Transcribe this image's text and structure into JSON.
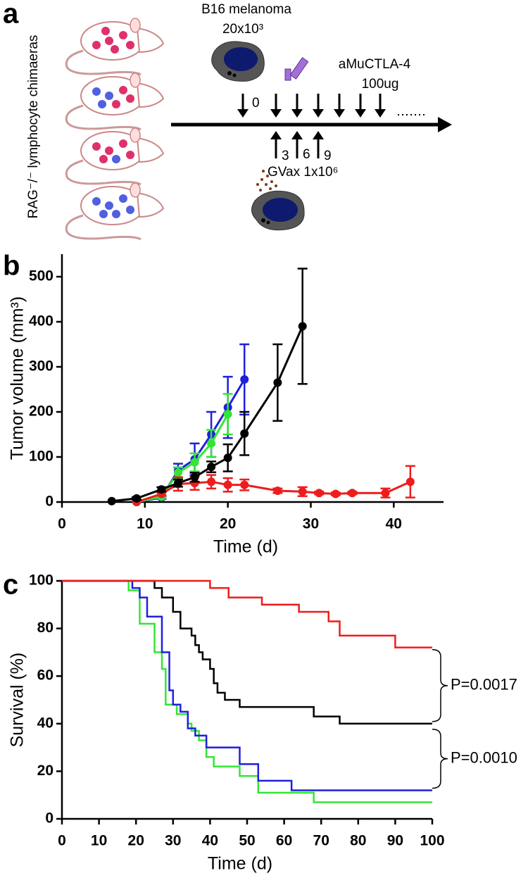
{
  "panel_labels": [
    "a",
    "b",
    "c"
  ],
  "diagram": {
    "side_label": "RAG⁻/⁻ lymphocyte chimaeras",
    "tumor_label": "B16 melanoma",
    "tumor_dose": "20x10³",
    "antibody_label": "aMuCTLA-4",
    "antibody_dose": "100ug",
    "vaccine_label": "GVax 1x10⁶",
    "day_labels": [
      "0",
      "3",
      "6",
      "9"
    ]
  },
  "chart_data": [
    {
      "type": "line",
      "xlabel": "Time (d)",
      "ylabel": "Tumor volume (mm³)",
      "xlim": [
        0,
        46
      ],
      "xticks": [
        0,
        10,
        20,
        30,
        40
      ],
      "ylim": [
        0,
        550
      ],
      "yticks": [
        0,
        100,
        200,
        300,
        400,
        500
      ],
      "series": [
        {
          "color": "#1f1fdd",
          "x": [
            9,
            12,
            14,
            16,
            18,
            20,
            22
          ],
          "values": [
            0,
            10,
            70,
            95,
            150,
            210,
            272
          ],
          "errors": [
            0,
            3,
            15,
            35,
            50,
            68,
            78
          ]
        },
        {
          "color": "#33e633",
          "x": [
            9,
            12,
            14,
            16,
            18,
            20
          ],
          "values": [
            0,
            12,
            65,
            88,
            130,
            195
          ],
          "errors": [
            0,
            3,
            12,
            20,
            30,
            45
          ]
        },
        {
          "color": "#ee1c1c",
          "x": [
            9,
            12,
            14,
            16,
            18,
            20,
            22,
            26,
            29,
            31,
            33,
            35,
            39,
            42
          ],
          "values": [
            0,
            18,
            40,
            42,
            45,
            38,
            38,
            25,
            23,
            20,
            18,
            20,
            20,
            45
          ],
          "errors": [
            0,
            3,
            15,
            15,
            15,
            15,
            12,
            5,
            10,
            3,
            3,
            3,
            10,
            35
          ]
        },
        {
          "color": "#000000",
          "x": [
            6,
            9,
            12,
            14,
            16,
            18,
            20,
            22,
            26,
            29
          ],
          "values": [
            2,
            8,
            28,
            42,
            55,
            78,
            98,
            152,
            265,
            390
          ],
          "errors": [
            0,
            3,
            5,
            8,
            10,
            12,
            30,
            48,
            85,
            128
          ]
        }
      ]
    },
    {
      "type": "step",
      "xlabel": "Time (d)",
      "ylabel": "Survival (%)",
      "xlim": [
        0,
        100
      ],
      "xticks": [
        0,
        10,
        20,
        30,
        40,
        50,
        60,
        70,
        80,
        90,
        100
      ],
      "ylim": [
        0,
        100
      ],
      "yticks": [
        0,
        20,
        40,
        60,
        80,
        100
      ],
      "annotations": [
        "P=0.0017",
        "P=0.0010"
      ],
      "series": [
        {
          "color": "#000000",
          "x": [
            0,
            25,
            27,
            30,
            32,
            35,
            36,
            37,
            38,
            40,
            41,
            42,
            44,
            48,
            68,
            75,
            100
          ],
          "values": [
            100,
            97,
            93,
            87,
            80,
            77,
            73,
            70,
            67,
            63,
            57,
            53,
            50,
            47,
            43,
            40,
            40
          ]
        },
        {
          "color": "#33e633",
          "x": [
            0,
            18,
            21,
            25,
            27,
            28,
            31,
            34,
            35,
            37,
            39,
            41,
            48,
            53,
            68,
            100
          ],
          "values": [
            100,
            96,
            82,
            70,
            63,
            48,
            44,
            40,
            37,
            33,
            26,
            22,
            18,
            11,
            7,
            7
          ]
        },
        {
          "color": "#1f1fdd",
          "x": [
            0,
            19,
            21,
            23,
            27,
            29,
            30,
            32,
            34,
            36,
            39,
            48,
            53,
            62,
            100
          ],
          "values": [
            100,
            97,
            93,
            85,
            70,
            54,
            48,
            45,
            38,
            35,
            30,
            23,
            16,
            12,
            12
          ]
        },
        {
          "color": "#ee1c1c",
          "x": [
            0,
            40,
            45,
            54,
            64,
            72,
            75,
            90,
            100
          ],
          "values": [
            100,
            97,
            93,
            90,
            87,
            83,
            77,
            72,
            72
          ]
        }
      ]
    }
  ]
}
